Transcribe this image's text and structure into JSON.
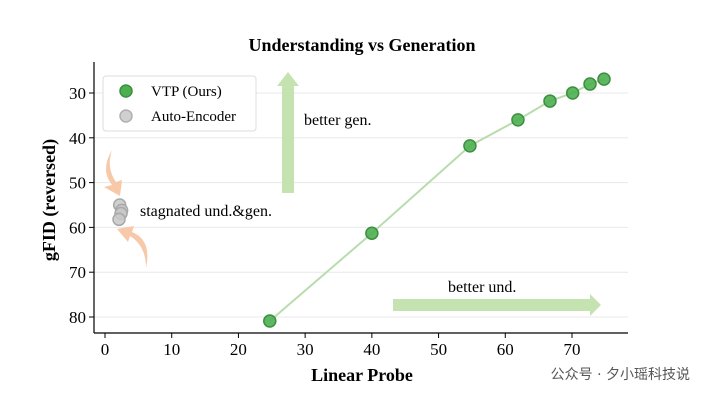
{
  "chart_data": {
    "type": "scatter",
    "title": "Understanding vs Generation",
    "xlabel": "Linear Probe",
    "ylabel": "gFID (reversed)",
    "xlim": [
      -1,
      78
    ],
    "ylim": [
      85,
      25
    ],
    "y_reversed": true,
    "xticks": [
      0,
      10,
      20,
      30,
      40,
      50,
      60,
      70
    ],
    "yticks": [
      30,
      40,
      50,
      60,
      70,
      80
    ],
    "grid": "horizontal",
    "legend": "top-left",
    "series": [
      {
        "name": "VTP (Ours)",
        "color": "#4caf50",
        "connected": true,
        "x": [
          24.7,
          40.0,
          54.7,
          61.9,
          66.7,
          70.1,
          72.7,
          74.8
        ],
        "y": [
          80.9,
          61.3,
          41.8,
          36.0,
          31.8,
          30.0,
          28.0,
          26.9
        ]
      },
      {
        "name": "Auto-Encoder",
        "color": "#c8c8c8",
        "connected": false,
        "x": [
          2.2,
          2.5,
          2.4,
          2.1
        ],
        "y": [
          55.0,
          56.2,
          56.9,
          58.2
        ]
      }
    ],
    "annotations": [
      "better gen.",
      "better und.",
      "stagnated und.&gen."
    ]
  },
  "watermark": "公众号 · 夕小瑶科技说"
}
